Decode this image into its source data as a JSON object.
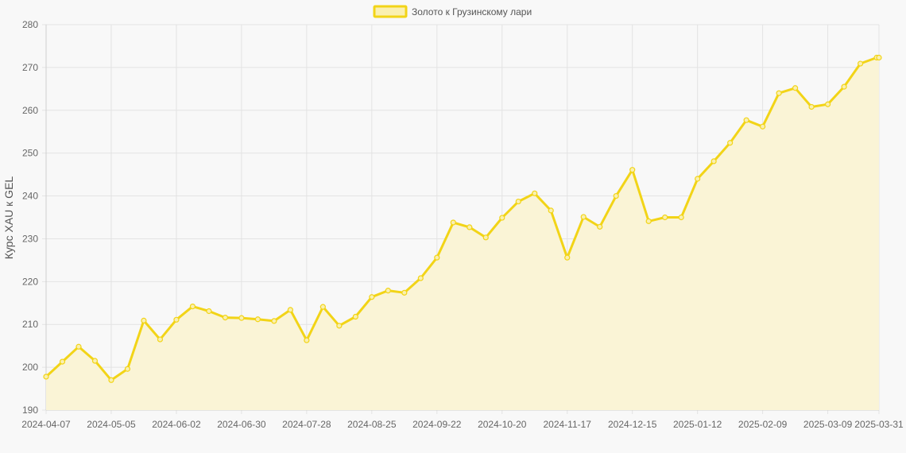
{
  "colors": {
    "line": "#f2d417",
    "fill": "#faf4d6",
    "point_fill": "#faf0b0",
    "background": "#f8f8f8"
  },
  "chart_data": {
    "type": "area",
    "title": "",
    "xlabel": "",
    "ylabel": "Курс XAU к GEL",
    "ylim": [
      190,
      280
    ],
    "y_ticks": [
      190,
      200,
      210,
      220,
      230,
      240,
      250,
      260,
      270,
      280
    ],
    "x_ticks": [
      "2024-04-07",
      "2024-05-05",
      "2024-06-02",
      "2024-06-30",
      "2024-07-28",
      "2024-08-25",
      "2024-09-22",
      "2024-10-20",
      "2024-11-17",
      "2024-12-15",
      "2025-01-12",
      "2025-02-09",
      "2025-03-09",
      "2025-03-31"
    ],
    "grid": true,
    "legend_position": "top-center",
    "series": [
      {
        "name": "Золото к Грузинскому лари",
        "x": [
          "2024-04-07",
          "2024-04-14",
          "2024-04-21",
          "2024-04-28",
          "2024-05-05",
          "2024-05-12",
          "2024-05-19",
          "2024-05-26",
          "2024-06-02",
          "2024-06-09",
          "2024-06-16",
          "2024-06-23",
          "2024-06-30",
          "2024-07-07",
          "2024-07-14",
          "2024-07-21",
          "2024-07-28",
          "2024-08-04",
          "2024-08-11",
          "2024-08-18",
          "2024-08-25",
          "2024-09-01",
          "2024-09-08",
          "2024-09-15",
          "2024-09-22",
          "2024-09-29",
          "2024-10-06",
          "2024-10-13",
          "2024-10-20",
          "2024-10-27",
          "2024-11-03",
          "2024-11-10",
          "2024-11-17",
          "2024-11-24",
          "2024-12-01",
          "2024-12-08",
          "2024-12-15",
          "2024-12-22",
          "2024-12-29",
          "2025-01-05",
          "2025-01-12",
          "2025-01-19",
          "2025-01-26",
          "2025-02-02",
          "2025-02-09",
          "2025-02-16",
          "2025-02-23",
          "2025-03-02",
          "2025-03-09",
          "2025-03-16",
          "2025-03-23",
          "2025-03-30",
          "2025-03-31"
        ],
        "values": [
          197.8,
          201.3,
          204.8,
          201.5,
          197.0,
          199.6,
          210.9,
          206.5,
          211.1,
          214.2,
          213.1,
          211.6,
          211.5,
          211.2,
          210.8,
          213.4,
          206.3,
          214.1,
          209.7,
          211.8,
          216.4,
          217.9,
          217.4,
          220.8,
          225.6,
          233.8,
          232.7,
          230.3,
          234.9,
          238.7,
          240.6,
          236.6,
          225.6,
          235.1,
          232.8,
          240.0,
          246.1,
          234.1,
          235.0,
          235.0,
          244.0,
          248.1,
          252.4,
          257.7,
          256.2,
          264.0,
          265.2,
          260.8,
          261.4,
          265.5,
          270.9,
          272.3,
          272.3
        ]
      }
    ]
  }
}
